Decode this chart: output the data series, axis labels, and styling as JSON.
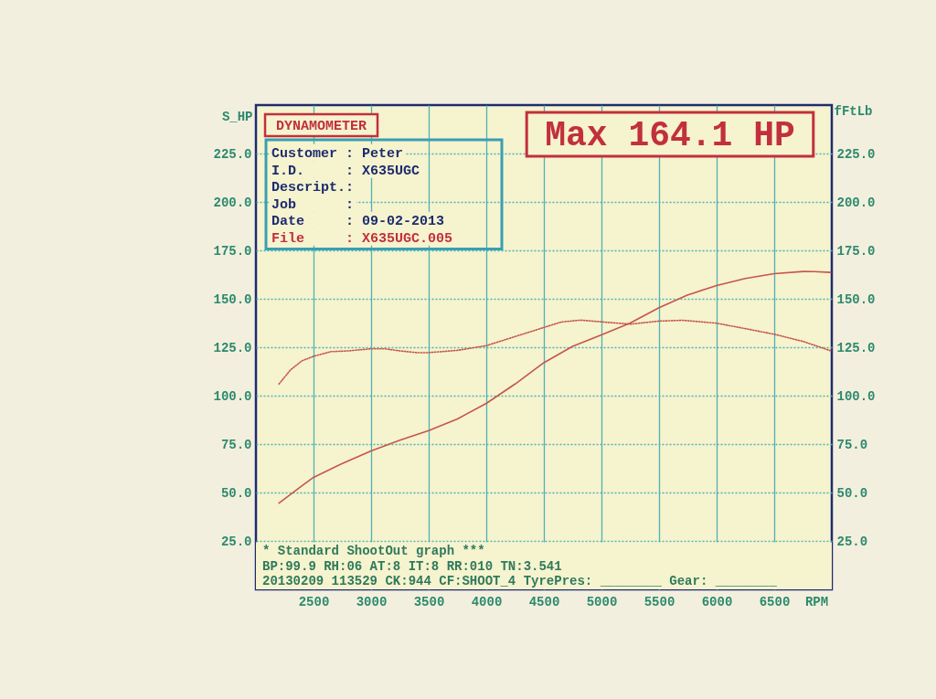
{
  "chart_data": {
    "type": "line",
    "title": "DYNAMOMETER",
    "xlabel": "RPM",
    "ylabel": "S_HP",
    "y2label": "fFtLb",
    "xlim": [
      2000,
      7000
    ],
    "xticks": [
      2500,
      3000,
      3500,
      4000,
      4500,
      5000,
      5500,
      6000,
      6500
    ],
    "ylim": [
      0,
      250
    ],
    "yticks": [
      {
        "value": 25,
        "label": "25.0"
      },
      {
        "value": 50,
        "label": "50.0"
      },
      {
        "value": 75,
        "label": "75.0"
      },
      {
        "value": 100,
        "label": "100.0"
      },
      {
        "value": 125,
        "label": "125.0"
      },
      {
        "value": 150,
        "label": "150.0"
      },
      {
        "value": 175,
        "label": "175.0"
      },
      {
        "value": 200,
        "label": "200.0"
      },
      {
        "value": 225,
        "label": "225.0"
      }
    ],
    "y2lim": [
      0,
      250
    ],
    "y2ticks": [
      {
        "value": 25,
        "label": "25.0"
      },
      {
        "value": 50,
        "label": "50.0"
      },
      {
        "value": 75,
        "label": "75.0"
      },
      {
        "value": 100,
        "label": "100.0"
      },
      {
        "value": 125,
        "label": "125.0"
      },
      {
        "value": 150,
        "label": "150.0"
      },
      {
        "value": 175,
        "label": "175.0"
      },
      {
        "value": 200,
        "label": "200.0"
      },
      {
        "value": 225,
        "label": "225.0"
      }
    ],
    "grid": true,
    "series": [
      {
        "color": "#c4574a",
        "line_style": "solid",
        "x": [
          2200,
          2300,
          2400,
          2500,
          2750,
          3000,
          3250,
          3500,
          3750,
          4000,
          4250,
          4500,
          4750,
          5000,
          5250,
          5500,
          5750,
          6000,
          6250,
          6500,
          6750,
          6850,
          6990
        ],
        "values": [
          44.5,
          49,
          53.5,
          57.8,
          65,
          71.5,
          77,
          82,
          88,
          96,
          106,
          117,
          125.5,
          131.4,
          137.5,
          145.4,
          152,
          156.8,
          160.5,
          163,
          164.1,
          164,
          163.6
        ]
      },
      {
        "color": "#c4574a",
        "line_style": "dotted",
        "axis": "y2",
        "x": [
          2200,
          2300,
          2400,
          2500,
          2650,
          2800,
          3000,
          3120,
          3250,
          3400,
          3500,
          3750,
          4000,
          4250,
          4500,
          4650,
          4820,
          5000,
          5250,
          5500,
          5700,
          6000,
          6250,
          6500,
          6750,
          6990
        ],
        "values": [
          106,
          113.3,
          118,
          120.3,
          122.7,
          123.1,
          124.2,
          124.2,
          123.1,
          122.2,
          122.2,
          123.4,
          125.8,
          130.5,
          135.2,
          138,
          139,
          138.1,
          136.9,
          138.5,
          138.9,
          137.4,
          134.6,
          131.7,
          128,
          123.2
        ]
      }
    ],
    "annotations": [
      "Customer : Peter",
      "I.D. : X635UGC",
      "Descript.:",
      "Job :",
      "Date : 09-02-2013",
      "File : X635UGC.005",
      "Max 164.1 HP",
      "* Standard ShootOut graph ***",
      "BP:99.9 RH:06 AT:8 IT:8 RR:010 TN:3.541",
      "20130209 113529 CK:944 CF:SHOOT_4  TyrePres: ________  Gear: ________"
    ]
  }
}
